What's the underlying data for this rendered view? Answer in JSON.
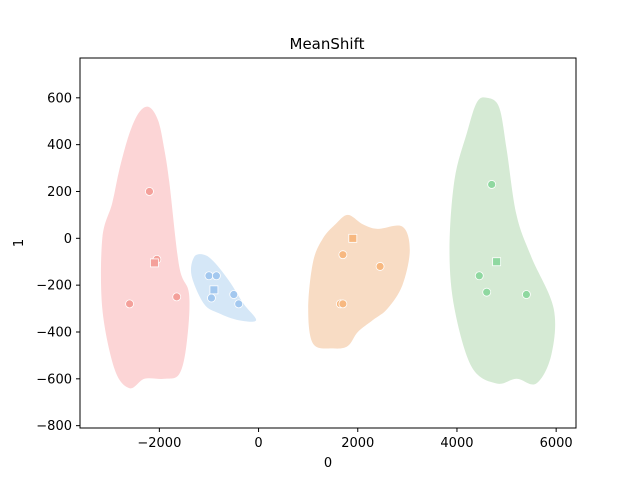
{
  "chart_data": {
    "type": "scatter",
    "title": "MeanShift",
    "xlabel": "0",
    "ylabel": "1",
    "xlim": [
      -3600,
      6400
    ],
    "ylim": [
      -810,
      770
    ],
    "xticks": [
      -2000,
      0,
      2000,
      4000,
      6000
    ],
    "yticks": [
      -800,
      -600,
      -400,
      -200,
      0,
      200,
      400,
      600
    ],
    "grid": false,
    "clusters": [
      {
        "color": "#f4a09a",
        "region_color": "#fcd5d6",
        "region": [
          [
            -2200,
            560
          ],
          [
            -2020,
            500
          ],
          [
            -1900,
            380
          ],
          [
            -1800,
            240
          ],
          [
            -1600,
            -120
          ],
          [
            -1400,
            -240
          ],
          [
            -1450,
            -450
          ],
          [
            -1600,
            -580
          ],
          [
            -1900,
            -600
          ],
          [
            -2300,
            -600
          ],
          [
            -2600,
            -640
          ],
          [
            -2900,
            -560
          ],
          [
            -3150,
            -300
          ],
          [
            -3150,
            0
          ],
          [
            -2950,
            150
          ],
          [
            -2800,
            300
          ],
          [
            -2600,
            450
          ],
          [
            -2400,
            540
          ]
        ],
        "points": [
          {
            "x": -2200,
            "y": 200,
            "marker": "circle"
          },
          {
            "x": -2050,
            "y": -90,
            "marker": "circle"
          },
          {
            "x": -1650,
            "y": -250,
            "marker": "circle"
          },
          {
            "x": -2600,
            "y": -280,
            "marker": "circle"
          },
          {
            "x": -2100,
            "y": -105,
            "marker": "square"
          }
        ]
      },
      {
        "color": "#a3c8ef",
        "region_color": "#d5e7f7",
        "region": [
          [
            -1100,
            -70
          ],
          [
            -900,
            -100
          ],
          [
            -600,
            -180
          ],
          [
            -300,
            -280
          ],
          [
            -50,
            -350
          ],
          [
            -400,
            -350
          ],
          [
            -800,
            -320
          ],
          [
            -1100,
            -280
          ],
          [
            -1350,
            -160
          ],
          [
            -1300,
            -80
          ]
        ],
        "points": [
          {
            "x": -1000,
            "y": -160,
            "marker": "circle"
          },
          {
            "x": -850,
            "y": -160,
            "marker": "circle"
          },
          {
            "x": -500,
            "y": -240,
            "marker": "circle"
          },
          {
            "x": -400,
            "y": -280,
            "marker": "circle"
          },
          {
            "x": -950,
            "y": -255,
            "marker": "circle"
          },
          {
            "x": -900,
            "y": -220,
            "marker": "square"
          }
        ]
      },
      {
        "color": "#f7b880",
        "region_color": "#f8dcc4",
        "region": [
          [
            1800,
            100
          ],
          [
            2100,
            60
          ],
          [
            2400,
            40
          ],
          [
            2900,
            50
          ],
          [
            3050,
            -50
          ],
          [
            2900,
            -200
          ],
          [
            2600,
            -300
          ],
          [
            2300,
            -350
          ],
          [
            2000,
            -400
          ],
          [
            1800,
            -460
          ],
          [
            1500,
            -470
          ],
          [
            1100,
            -450
          ],
          [
            1000,
            -300
          ],
          [
            1100,
            -100
          ],
          [
            1300,
            0
          ],
          [
            1550,
            60
          ]
        ],
        "points": [
          {
            "x": 1700,
            "y": -70,
            "marker": "circle"
          },
          {
            "x": 2450,
            "y": -120,
            "marker": "circle"
          },
          {
            "x": 1650,
            "y": -280,
            "marker": "circle"
          },
          {
            "x": 1700,
            "y": -280,
            "marker": "circle"
          },
          {
            "x": 1900,
            "y": 0,
            "marker": "square"
          }
        ]
      },
      {
        "color": "#8fd8a0",
        "region_color": "#d5ead4",
        "region": [
          [
            4600,
            600
          ],
          [
            4850,
            560
          ],
          [
            5000,
            380
          ],
          [
            5200,
            100
          ],
          [
            5500,
            -80
          ],
          [
            5950,
            -300
          ],
          [
            5900,
            -500
          ],
          [
            5600,
            -620
          ],
          [
            5200,
            -600
          ],
          [
            4800,
            -620
          ],
          [
            4300,
            -550
          ],
          [
            3950,
            -300
          ],
          [
            3850,
            -50
          ],
          [
            3950,
            250
          ],
          [
            4200,
            450
          ],
          [
            4400,
            580
          ]
        ],
        "points": [
          {
            "x": 4700,
            "y": 230,
            "marker": "circle"
          },
          {
            "x": 4450,
            "y": -160,
            "marker": "circle"
          },
          {
            "x": 4600,
            "y": -230,
            "marker": "circle"
          },
          {
            "x": 5400,
            "y": -240,
            "marker": "circle"
          },
          {
            "x": 4800,
            "y": -100,
            "marker": "square"
          }
        ]
      }
    ]
  }
}
